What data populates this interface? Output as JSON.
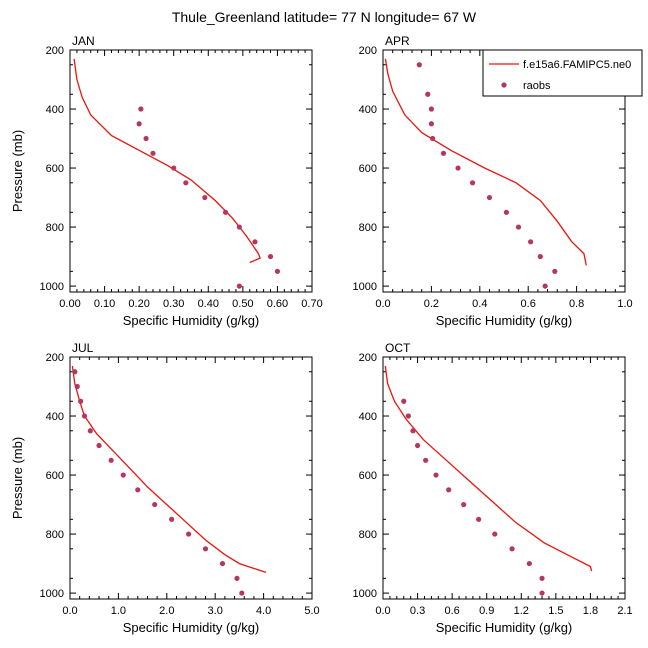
{
  "title": "Thule_Greenland  latitude= 77 N longitude= 67 W",
  "chart_data": [
    {
      "type": "line",
      "panel_label": "JAN",
      "xlabel": "Specific Humidity (g/kg)",
      "ylabel": "Pressure (mb)",
      "xlim": [
        0,
        0.7
      ],
      "ylim": [
        200,
        1020
      ],
      "y_inverted": true,
      "x_ticks": [
        "0.00",
        "0.10",
        "0.20",
        "0.30",
        "0.40",
        "0.50",
        "0.60",
        "0.70"
      ],
      "y_ticks": [
        "200",
        "400",
        "600",
        "800",
        "1000"
      ],
      "series": [
        {
          "name": "f.e15a6.FAMIPC5.ne0",
          "style": "line",
          "color": "#e8150d",
          "points": [
            [
              0.012,
              230
            ],
            [
              0.02,
              300
            ],
            [
              0.035,
              360
            ],
            [
              0.06,
              420
            ],
            [
              0.12,
              490
            ],
            [
              0.2,
              540
            ],
            [
              0.28,
              590
            ],
            [
              0.35,
              640
            ],
            [
              0.42,
              710
            ],
            [
              0.47,
              770
            ],
            [
              0.51,
              830
            ],
            [
              0.545,
              890
            ],
            [
              0.55,
              905
            ],
            [
              0.52,
              920
            ]
          ]
        },
        {
          "name": "raobs",
          "style": "marker",
          "color": "#b5365e",
          "points": [
            [
              0.205,
              400
            ],
            [
              0.2,
              450
            ],
            [
              0.22,
              500
            ],
            [
              0.24,
              550
            ],
            [
              0.3,
              600
            ],
            [
              0.335,
              650
            ],
            [
              0.39,
              700
            ],
            [
              0.45,
              750
            ],
            [
              0.49,
              800
            ],
            [
              0.535,
              850
            ],
            [
              0.58,
              900
            ],
            [
              0.6,
              950
            ],
            [
              0.49,
              1000
            ]
          ]
        }
      ]
    },
    {
      "type": "line",
      "panel_label": "APR",
      "xlabel": "Specific Humidity (g/kg)",
      "ylabel": "",
      "xlim": [
        0,
        1.0
      ],
      "ylim": [
        200,
        1020
      ],
      "y_inverted": true,
      "x_ticks": [
        "0.0",
        "0.2",
        "0.4",
        "0.6",
        "0.8",
        "1.0"
      ],
      "y_ticks": [
        "200",
        "400",
        "600",
        "800",
        "1000"
      ],
      "series": [
        {
          "name": "f.e15a6.FAMIPC5.ne0",
          "style": "line",
          "color": "#e8150d",
          "points": [
            [
              0.01,
              230
            ],
            [
              0.02,
              280
            ],
            [
              0.04,
              340
            ],
            [
              0.09,
              420
            ],
            [
              0.16,
              480
            ],
            [
              0.28,
              540
            ],
            [
              0.42,
              600
            ],
            [
              0.55,
              650
            ],
            [
              0.65,
              710
            ],
            [
              0.72,
              780
            ],
            [
              0.78,
              850
            ],
            [
              0.83,
              890
            ],
            [
              0.84,
              930
            ]
          ]
        },
        {
          "name": "raobs",
          "style": "marker",
          "color": "#b5365e",
          "points": [
            [
              0.15,
              250
            ],
            [
              0.185,
              350
            ],
            [
              0.2,
              400
            ],
            [
              0.2,
              450
            ],
            [
              0.205,
              500
            ],
            [
              0.25,
              550
            ],
            [
              0.31,
              600
            ],
            [
              0.37,
              650
            ],
            [
              0.44,
              700
            ],
            [
              0.51,
              750
            ],
            [
              0.56,
              800
            ],
            [
              0.61,
              850
            ],
            [
              0.65,
              900
            ],
            [
              0.71,
              950
            ],
            [
              0.67,
              1000
            ]
          ]
        }
      ]
    },
    {
      "type": "line",
      "panel_label": "JUL",
      "xlabel": "Specific Humidity (g/kg)",
      "ylabel": "Pressure (mb)",
      "xlim": [
        0,
        5.0
      ],
      "ylim": [
        200,
        1020
      ],
      "y_inverted": true,
      "x_ticks": [
        "0.0",
        "1.0",
        "2.0",
        "3.0",
        "4.0",
        "5.0"
      ],
      "y_ticks": [
        "200",
        "400",
        "600",
        "800",
        "1000"
      ],
      "series": [
        {
          "name": "f.e15a6.FAMIPC5.ne0",
          "style": "line",
          "color": "#e8150d",
          "points": [
            [
              0.05,
              230
            ],
            [
              0.1,
              290
            ],
            [
              0.2,
              350
            ],
            [
              0.3,
              400
            ],
            [
              0.55,
              460
            ],
            [
              0.9,
              520
            ],
            [
              1.25,
              580
            ],
            [
              1.6,
              640
            ],
            [
              2.0,
              700
            ],
            [
              2.4,
              760
            ],
            [
              2.8,
              820
            ],
            [
              3.2,
              870
            ],
            [
              3.5,
              900
            ],
            [
              4.05,
              930
            ]
          ]
        },
        {
          "name": "raobs",
          "style": "marker",
          "color": "#b5365e",
          "points": [
            [
              0.1,
              250
            ],
            [
              0.15,
              300
            ],
            [
              0.22,
              350
            ],
            [
              0.3,
              400
            ],
            [
              0.42,
              450
            ],
            [
              0.6,
              500
            ],
            [
              0.85,
              550
            ],
            [
              1.1,
              600
            ],
            [
              1.4,
              650
            ],
            [
              1.75,
              700
            ],
            [
              2.1,
              750
            ],
            [
              2.45,
              800
            ],
            [
              2.8,
              850
            ],
            [
              3.15,
              900
            ],
            [
              3.45,
              950
            ],
            [
              3.55,
              1000
            ]
          ]
        }
      ]
    },
    {
      "type": "line",
      "panel_label": "OCT",
      "xlabel": "Specific Humidity (g/kg)",
      "ylabel": "",
      "xlim": [
        0,
        2.1
      ],
      "ylim": [
        200,
        1020
      ],
      "y_inverted": true,
      "x_ticks": [
        "0.0",
        "0.3",
        "0.6",
        "0.9",
        "1.2",
        "1.5",
        "1.8",
        "2.1"
      ],
      "y_ticks": [
        "200",
        "400",
        "600",
        "800",
        "1000"
      ],
      "series": [
        {
          "name": "f.e15a6.FAMIPC5.ne0",
          "style": "line",
          "color": "#e8150d",
          "points": [
            [
              0.02,
              230
            ],
            [
              0.04,
              290
            ],
            [
              0.1,
              350
            ],
            [
              0.2,
              410
            ],
            [
              0.35,
              480
            ],
            [
              0.55,
              550
            ],
            [
              0.75,
              620
            ],
            [
              0.95,
              690
            ],
            [
              1.15,
              760
            ],
            [
              1.4,
              830
            ],
            [
              1.65,
              880
            ],
            [
              1.8,
              910
            ],
            [
              1.81,
              925
            ]
          ]
        },
        {
          "name": "raobs",
          "style": "marker",
          "color": "#b5365e",
          "points": [
            [
              0.18,
              350
            ],
            [
              0.22,
              400
            ],
            [
              0.26,
              450
            ],
            [
              0.3,
              500
            ],
            [
              0.37,
              550
            ],
            [
              0.46,
              600
            ],
            [
              0.57,
              650
            ],
            [
              0.7,
              700
            ],
            [
              0.83,
              750
            ],
            [
              0.97,
              800
            ],
            [
              1.12,
              850
            ],
            [
              1.27,
              900
            ],
            [
              1.38,
              950
            ],
            [
              1.38,
              1000
            ]
          ]
        }
      ]
    }
  ],
  "legend": {
    "placement": "top-right of APR panel",
    "entries": [
      {
        "label": "f.e15a6.FAMIPC5.ne0",
        "style": "line",
        "color": "#e8150d"
      },
      {
        "label": "raobs",
        "style": "marker",
        "color": "#b5365e"
      }
    ]
  }
}
